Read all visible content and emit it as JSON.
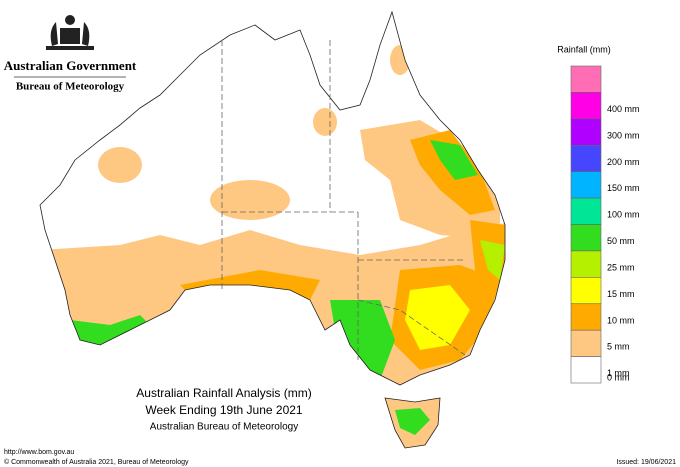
{
  "header": {
    "government": "Australian Government",
    "agency": "Bureau of Meteorology"
  },
  "legend": {
    "title": "Rainfall (mm)",
    "items": [
      {
        "color": "#ff6eb4",
        "label": null
      },
      {
        "color": "#ff00e6",
        "label": "400 mm"
      },
      {
        "color": "#b000ff",
        "label": "300 mm"
      },
      {
        "color": "#4646ff",
        "label": "200 mm"
      },
      {
        "color": "#00b4ff",
        "label": "150 mm"
      },
      {
        "color": "#00e696",
        "label": "100 mm"
      },
      {
        "color": "#32dc1e",
        "label": "50 mm"
      },
      {
        "color": "#b4f000",
        "label": "25 mm"
      },
      {
        "color": "#ffff00",
        "label": "15 mm"
      },
      {
        "color": "#ffaa00",
        "label": "10 mm"
      },
      {
        "color": "#ffc882",
        "label": "5 mm"
      },
      {
        "color": "#ffffff",
        "label": "1 mm"
      },
      {
        "color": null,
        "label": "0 mm"
      }
    ]
  },
  "caption": {
    "lines": [
      "Australian Rainfall Analysis (mm)",
      "Week Ending 19th June 2021",
      "Australian Bureau of Meteorology"
    ]
  },
  "footer": {
    "url": "http://www.bom.gov.au",
    "copyright": "© Commonwealth of Australia 2021, Bureau of Meteorology",
    "issued": "Issued: 19/06/2021"
  }
}
